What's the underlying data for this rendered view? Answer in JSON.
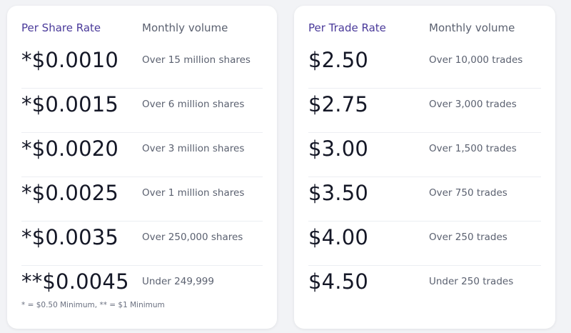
{
  "share_card": {
    "rate_header": "Per Share Rate",
    "volume_header": "Monthly volume",
    "rows": [
      {
        "price": "*$0.0010",
        "volume": "Over 15 million shares"
      },
      {
        "price": "*$0.0015",
        "volume": "Over 6 million shares"
      },
      {
        "price": "*$0.0020",
        "volume": "Over 3 million shares"
      },
      {
        "price": "*$0.0025",
        "volume": "Over 1 million shares"
      },
      {
        "price": "*$0.0035",
        "volume": "Over 250,000 shares"
      },
      {
        "price": "**$0.0045",
        "volume": "Under 249,999"
      }
    ],
    "footnote": "* = $0.50 Minimum, ** = $1 Minimum"
  },
  "trade_card": {
    "rate_header": "Per Trade Rate",
    "volume_header": "Monthly volume",
    "rows": [
      {
        "price": "$2.50",
        "volume": "Over 10,000 trades"
      },
      {
        "price": "$2.75",
        "volume": "Over 3,000 trades"
      },
      {
        "price": "$3.00",
        "volume": "Over 1,500 trades"
      },
      {
        "price": "$3.50",
        "volume": "Over 750 trades"
      },
      {
        "price": "$4.00",
        "volume": "Over 250 trades"
      },
      {
        "price": "$4.50",
        "volume": "Under 250 trades"
      }
    ]
  },
  "colors": {
    "header_accent": "#4a3a9a",
    "price_text": "#151827",
    "muted_text": "#5b6170",
    "background": "#f2f3f6"
  }
}
